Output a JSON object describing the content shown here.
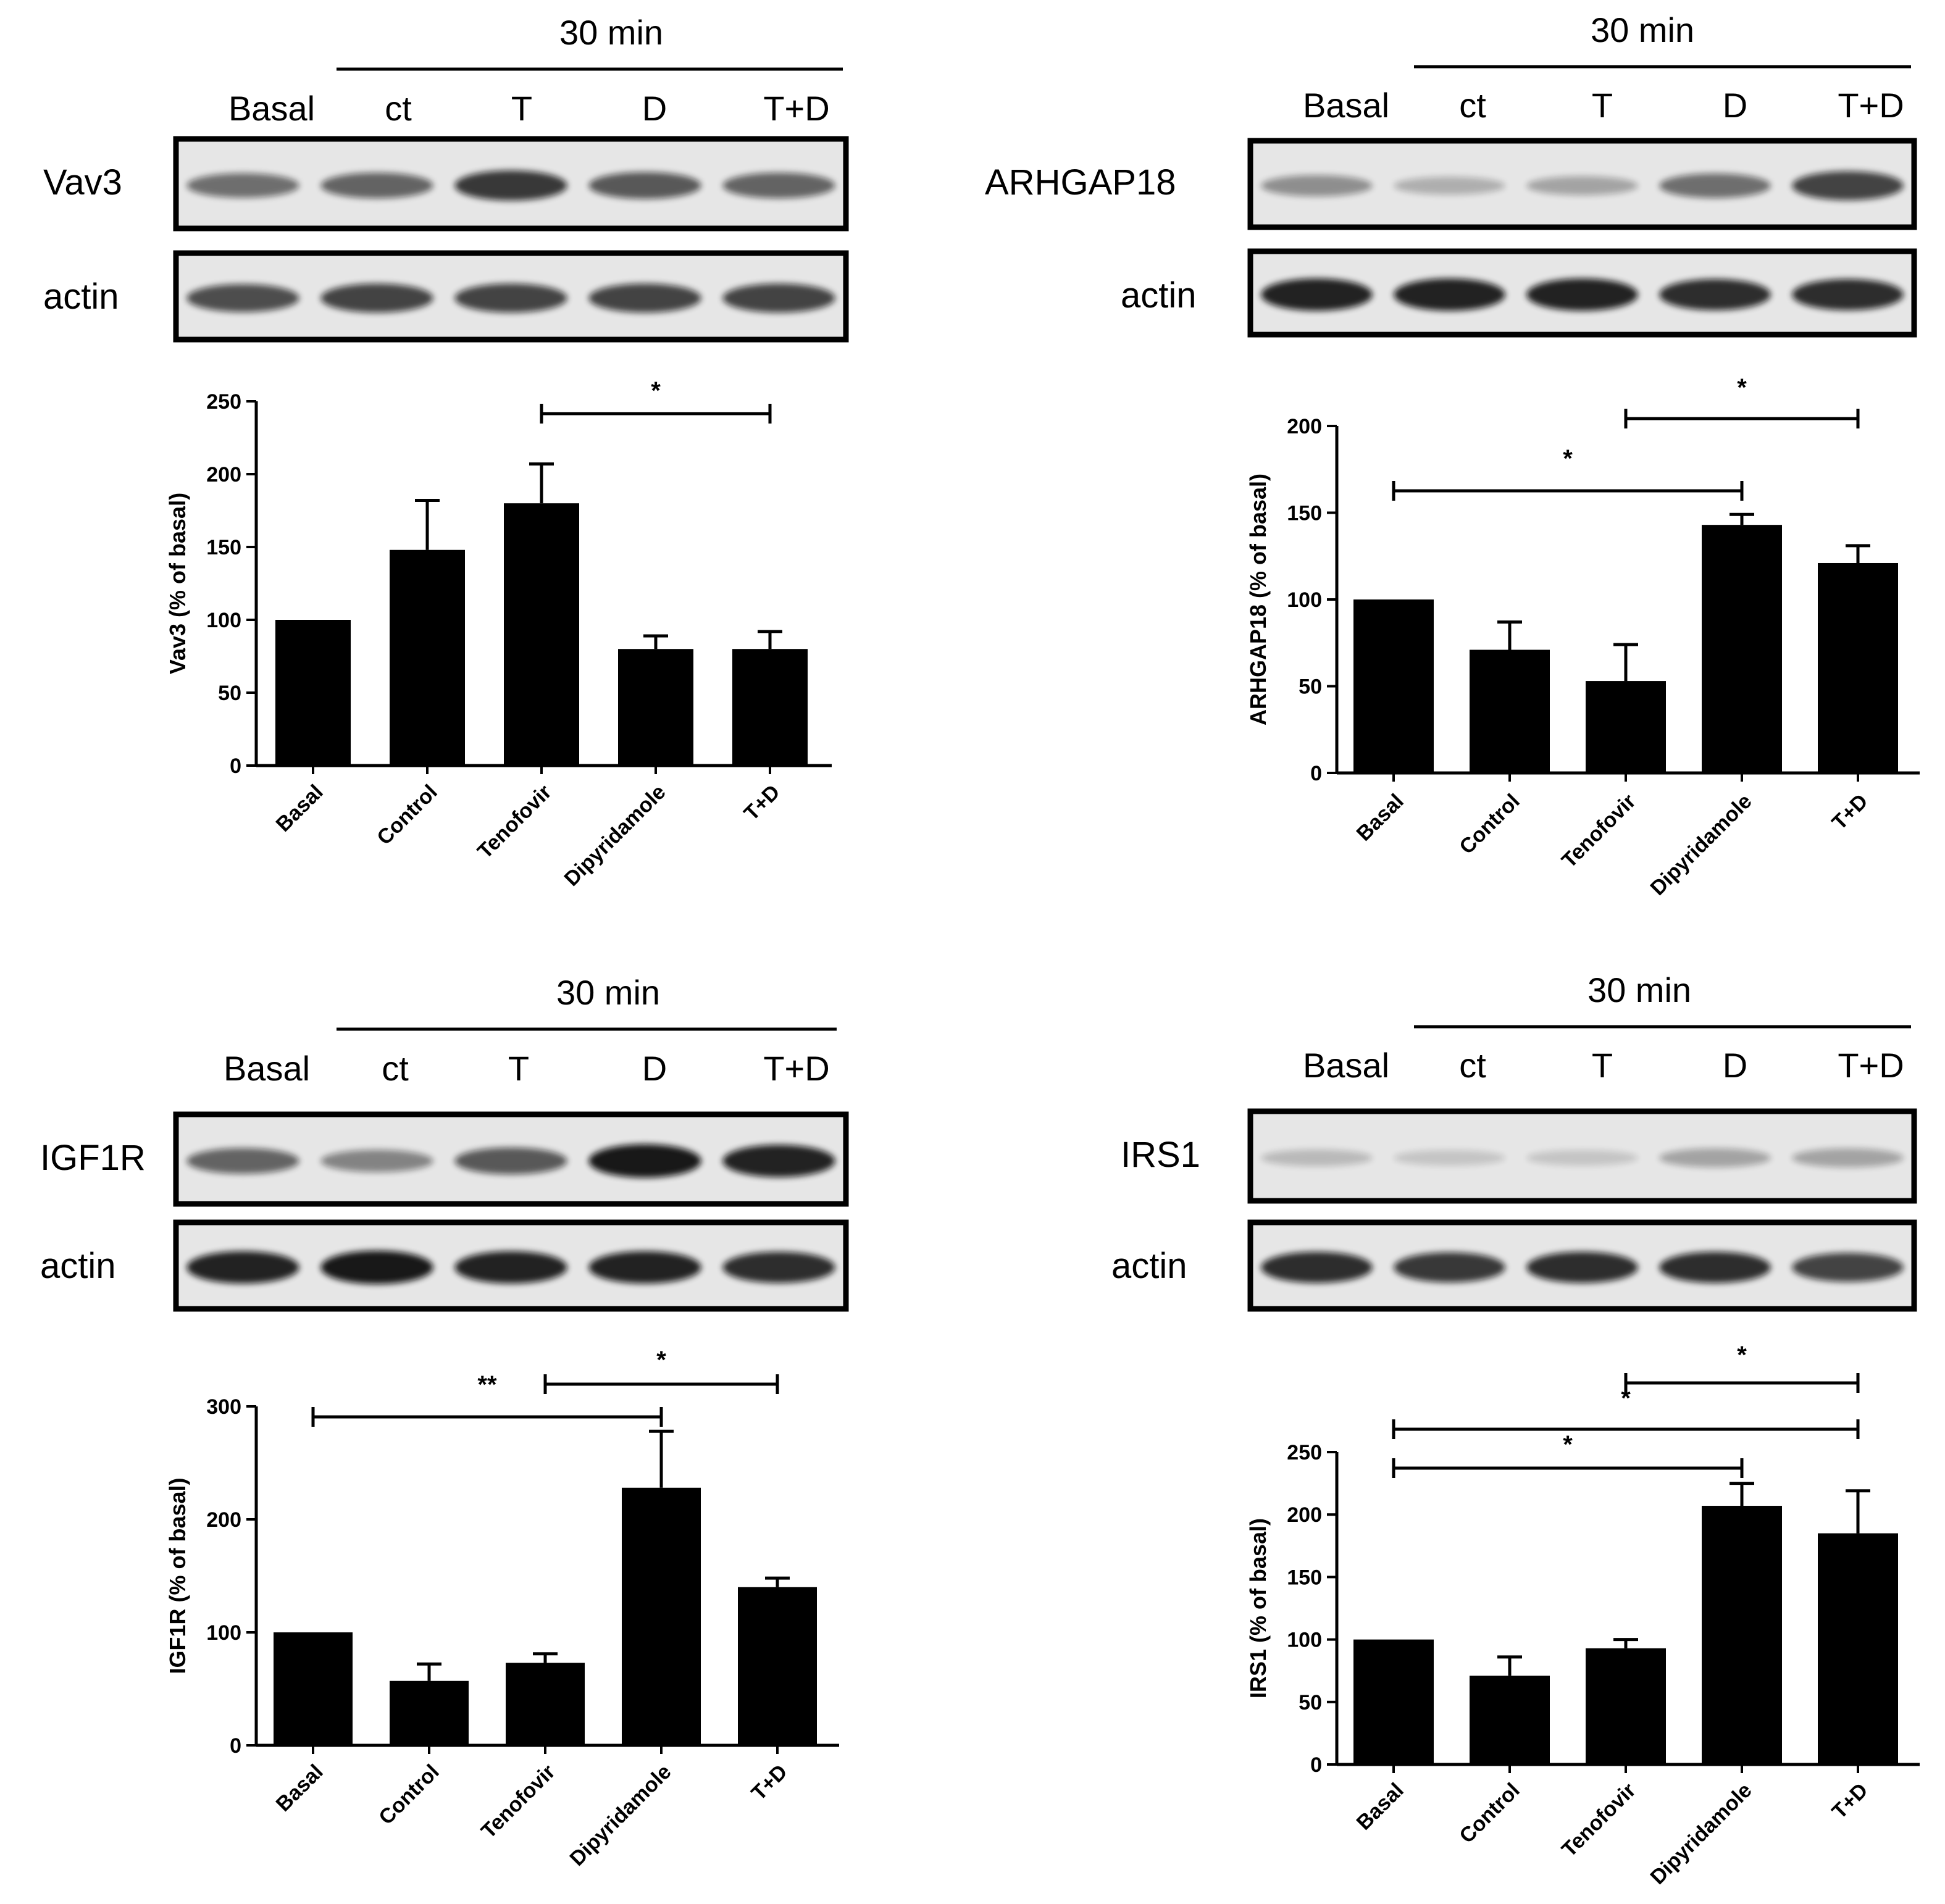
{
  "panels": [
    {
      "id": "vav3",
      "time_label": "30 min",
      "lane_labels": [
        "Basal",
        "ct",
        "T",
        "D",
        "T+D"
      ],
      "protein_label": "Vav3",
      "loading_label": "actin",
      "protein_band_intensity": [
        0.55,
        0.6,
        0.8,
        0.65,
        0.6
      ],
      "loading_band_intensity": [
        0.7,
        0.75,
        0.75,
        0.75,
        0.75
      ],
      "significance": [
        {
          "from": "Tenofovir",
          "to": "T+D",
          "label": "*"
        }
      ]
    },
    {
      "id": "arhgap18",
      "time_label": "30 min",
      "lane_labels": [
        "Basal",
        "ct",
        "T",
        "D",
        "T+D"
      ],
      "protein_label": "ARHGAP18",
      "loading_label": "actin",
      "protein_band_intensity": [
        0.4,
        0.25,
        0.3,
        0.55,
        0.75
      ],
      "loading_band_intensity": [
        0.9,
        0.9,
        0.9,
        0.85,
        0.85
      ],
      "significance": [
        {
          "from": "Tenofovir",
          "to": "T+D",
          "label": "*"
        },
        {
          "from": "Basal",
          "to": "Dipyridamole",
          "label": "*"
        }
      ]
    },
    {
      "id": "igf1r",
      "time_label": "30 min",
      "lane_labels": [
        "Basal",
        "ct",
        "T",
        "D",
        "T+D"
      ],
      "protein_label": "IGF1R",
      "loading_label": "actin",
      "protein_band_intensity": [
        0.6,
        0.45,
        0.65,
        0.95,
        0.9
      ],
      "loading_band_intensity": [
        0.9,
        0.95,
        0.9,
        0.9,
        0.85
      ],
      "significance": [
        {
          "from": "Tenofovir",
          "to": "T+D",
          "label": "*"
        },
        {
          "from": "Basal",
          "to": "Dipyridamole",
          "label": "**"
        }
      ]
    },
    {
      "id": "irs1",
      "time_label": "30 min",
      "lane_labels": [
        "Basal",
        "ct",
        "T",
        "D",
        "T+D"
      ],
      "protein_label": "IRS1",
      "loading_label": "actin",
      "protein_band_intensity": [
        0.2,
        0.15,
        0.15,
        0.3,
        0.3
      ],
      "loading_band_intensity": [
        0.85,
        0.8,
        0.85,
        0.85,
        0.75
      ],
      "significance": [
        {
          "from": "Tenofovir",
          "to": "T+D",
          "label": "*"
        },
        {
          "from": "Basal",
          "to": "T+D",
          "label": "*"
        },
        {
          "from": "Basal",
          "to": "Dipyridamole",
          "label": "*"
        }
      ]
    }
  ],
  "chart_data": [
    {
      "type": "bar",
      "categories": [
        "Basal",
        "Control",
        "Tenofovir",
        "Dipyridamole",
        "T+D"
      ],
      "values": [
        100,
        148,
        180,
        80,
        80
      ],
      "errors": [
        0,
        34,
        27,
        9,
        12
      ],
      "ylabel": "Vav3 (% of basal)",
      "ylim": [
        0,
        250
      ],
      "yticks": [
        "0",
        "50",
        "100",
        "150",
        "200",
        "250"
      ],
      "grid": false,
      "color": "#000000"
    },
    {
      "type": "bar",
      "categories": [
        "Basal",
        "Control",
        "Tenofovir",
        "Dipyridamole",
        "T+D"
      ],
      "values": [
        100,
        71,
        53,
        143,
        121
      ],
      "errors": [
        0,
        16,
        21,
        6,
        10
      ],
      "ylabel": "ARHGAP18 (% of basal)",
      "ylim": [
        0,
        200
      ],
      "yticks": [
        "0",
        "50",
        "100",
        "150",
        "200"
      ],
      "grid": false,
      "color": "#000000"
    },
    {
      "type": "bar",
      "categories": [
        "Basal",
        "Control",
        "Tenofovir",
        "Dipyridamole",
        "T+D"
      ],
      "values": [
        100,
        57,
        73,
        228,
        140
      ],
      "errors": [
        0,
        15,
        8,
        50,
        8
      ],
      "ylabel": "IGF1R (% of basal)",
      "ylim": [
        0,
        300
      ],
      "yticks": [
        "0",
        "100",
        "200",
        "300"
      ],
      "grid": false,
      "color": "#000000"
    },
    {
      "type": "bar",
      "categories": [
        "Basal",
        "Control",
        "Tenofovir",
        "Dipyridamole",
        "T+D"
      ],
      "values": [
        100,
        71,
        93,
        207,
        185
      ],
      "errors": [
        0,
        15,
        7,
        18,
        34
      ],
      "ylabel": "IRS1 (% of basal)",
      "ylim": [
        0,
        250
      ],
      "yticks": [
        "0",
        "50",
        "100",
        "150",
        "200",
        "250"
      ],
      "grid": false,
      "color": "#000000"
    }
  ]
}
